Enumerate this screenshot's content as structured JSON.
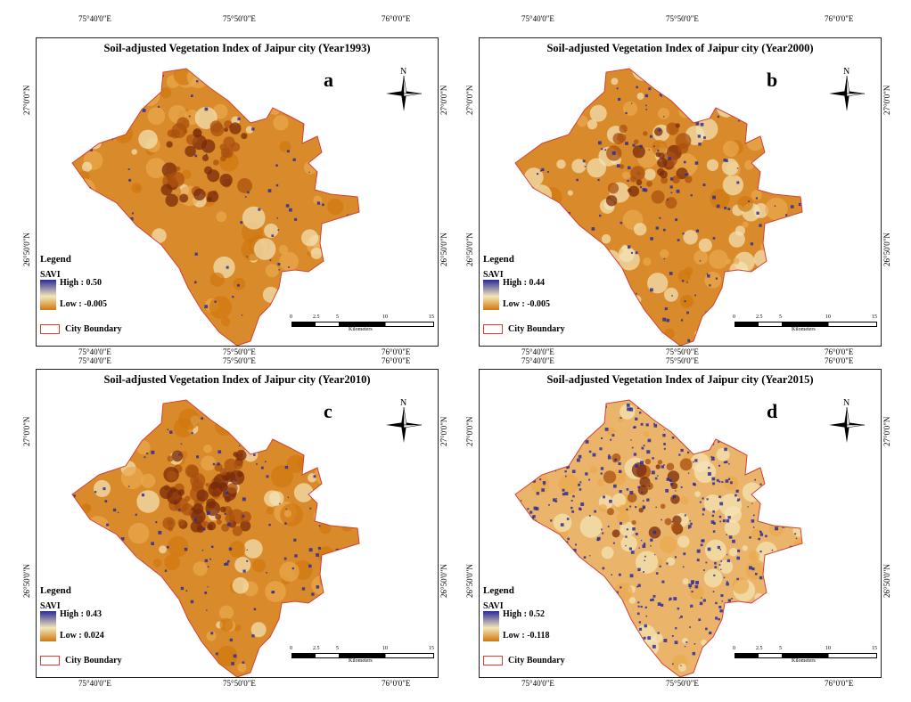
{
  "graticule": {
    "top_labels": [
      "75°40'0\"E",
      "75°50'0\"E",
      "76°0'0\"E"
    ],
    "side_labels": [
      "27°0'0\"N",
      "26°50'0\"N"
    ]
  },
  "panels": [
    {
      "letter": "a",
      "title": "Soil-adjusted Vegetation Index of Jaipur city (Year1993)",
      "legend_title": "Legend",
      "index_name": "SAVI",
      "high": "High : 0.50",
      "low": "Low : -0.005",
      "boundary": "City Boundary"
    },
    {
      "letter": "b",
      "title": "Soil-adjusted Vegetation Index of Jaipur city (Year2000)",
      "legend_title": "Legend",
      "index_name": "SAVI",
      "high": "High : 0.44",
      "low": "Low : -0.005",
      "boundary": "City Boundary"
    },
    {
      "letter": "c",
      "title": "Soil-adjusted Vegetation Index of Jaipur city (Year2010)",
      "legend_title": "Legend",
      "index_name": "SAVI",
      "high": "High : 0.43",
      "low": "Low : 0.024",
      "boundary": "City Boundary"
    },
    {
      "letter": "d",
      "title": "Soil-adjusted Vegetation Index of Jaipur city (Year2015)",
      "legend_title": "Legend",
      "index_name": "SAVI",
      "high": "High : 0.52",
      "low": "Low : -0.118",
      "boundary": "City Boundary"
    }
  ],
  "scalebar": {
    "ticks": [
      "0",
      "2.5",
      "5",
      "10",
      "15"
    ],
    "unit": "Kilometers"
  },
  "north_label": "N",
  "colors": {
    "high": "#2c2b9a",
    "mid": "#f3e6b8",
    "low": "#d0780f",
    "dark": "#7a2a0a",
    "boundary": "#d3403a"
  }
}
